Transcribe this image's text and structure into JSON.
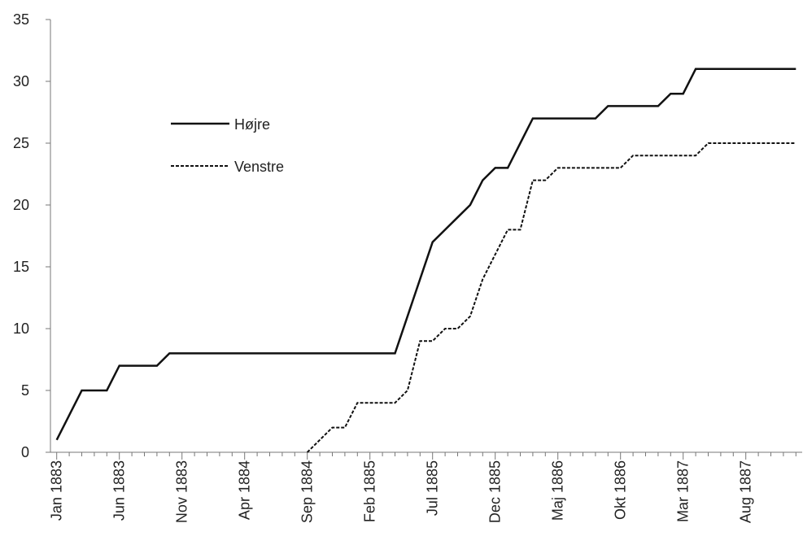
{
  "chart_data": {
    "type": "line",
    "categories": [
      "Jan 1883",
      null,
      null,
      null,
      null,
      "Jun 1883",
      null,
      null,
      null,
      null,
      "Nov 1883",
      null,
      null,
      null,
      null,
      "Apr 1884",
      null,
      null,
      null,
      null,
      "Sep 1884",
      null,
      null,
      null,
      null,
      "Feb 1885",
      null,
      null,
      null,
      null,
      "Jul 1885",
      null,
      null,
      null,
      null,
      "Dec 1885",
      null,
      null,
      null,
      null,
      "Maj 1886",
      null,
      null,
      null,
      null,
      "Okt 1886",
      null,
      null,
      null,
      null,
      "Mar 1887",
      null,
      null,
      null,
      null,
      "Aug 1887",
      null,
      null,
      null,
      null
    ],
    "series": [
      {
        "name": "Højre",
        "color": "#111111",
        "dash": "solid",
        "values": [
          1,
          3,
          5,
          5,
          5,
          7,
          7,
          7,
          7,
          8,
          8,
          8,
          8,
          8,
          8,
          8,
          8,
          8,
          8,
          8,
          8,
          8,
          8,
          8,
          8,
          8,
          8,
          8,
          11,
          14,
          17,
          18,
          19,
          20,
          22,
          23,
          23,
          25,
          27,
          27,
          27,
          27,
          27,
          27,
          28,
          28,
          28,
          28,
          28,
          29,
          29,
          31,
          31,
          31,
          31,
          31,
          31,
          31,
          31,
          31
        ]
      },
      {
        "name": "Venstre",
        "color": "#111111",
        "dash": "dashed",
        "values": [
          null,
          null,
          null,
          null,
          null,
          null,
          null,
          null,
          null,
          null,
          null,
          null,
          null,
          null,
          null,
          null,
          null,
          null,
          null,
          null,
          0,
          1,
          2,
          2,
          4,
          4,
          4,
          4,
          5,
          9,
          9,
          10,
          10,
          11,
          14,
          16,
          18,
          18,
          22,
          22,
          23,
          23,
          23,
          23,
          23,
          23,
          24,
          24,
          24,
          24,
          24,
          24,
          25,
          25,
          25,
          25,
          25,
          25,
          25,
          25
        ]
      }
    ],
    "ylim": [
      0,
      35
    ],
    "yticks": [
      0,
      5,
      10,
      15,
      20,
      25,
      30,
      35
    ]
  }
}
